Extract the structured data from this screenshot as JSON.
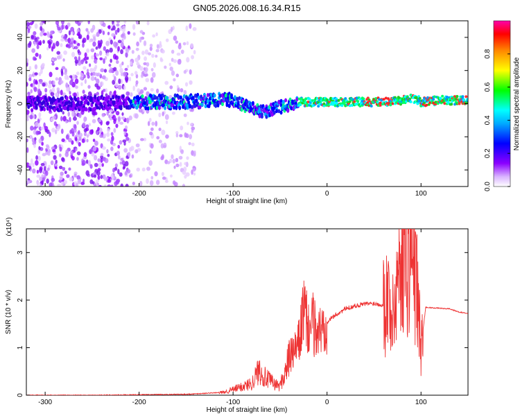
{
  "chart_data": [
    {
      "type": "heatmap",
      "title": "GN05.2026.008.16.34.R15",
      "xlabel": "Height of straight line (km)",
      "ylabel": "Frequency (Hz)",
      "xlim": [
        -320,
        150
      ],
      "ylim": [
        -50,
        50
      ],
      "xticks": [
        -300,
        -200,
        -100,
        0,
        100
      ],
      "yticks": [
        40,
        20,
        0,
        -20,
        -40
      ],
      "colorbar": {
        "label": "Normalized spectral amplitude",
        "ticks": [
          "0.0",
          "0.2",
          "0.4",
          "0.6",
          "0.8"
        ],
        "range": [
          0,
          1
        ],
        "colormap": [
          "#ffffff",
          "#8b00ff",
          "#0000ff",
          "#00ffff",
          "#00ff00",
          "#ffff00",
          "#ff8800",
          "#ff0000",
          "#ff00aa"
        ]
      },
      "ridge": {
        "x": [
          -320,
          -250,
          -210,
          -180,
          -150,
          -120,
          -100,
          -80,
          -65,
          -50,
          -40,
          -30,
          -20,
          -10,
          0,
          20,
          40,
          60,
          80,
          90,
          95,
          100,
          120,
          150
        ],
        "y": [
          0,
          0,
          1,
          1,
          1,
          2,
          2,
          -3,
          -5,
          -2,
          -1,
          1,
          1,
          1,
          1,
          1,
          1,
          1,
          2,
          3,
          3,
          1,
          2,
          2
        ]
      },
      "noise_region_x": [
        -320,
        -140
      ],
      "strong_band_x": [
        -30,
        150
      ]
    },
    {
      "type": "line",
      "xlabel": "Height of straight line (km)",
      "ylabel": "SNR (10 * v/v)",
      "y_multiplier": "(x10⁴)",
      "xlim": [
        -320,
        150
      ],
      "ylim": [
        0,
        3.5
      ],
      "xticks": [
        -300,
        -200,
        -100,
        0,
        100
      ],
      "yticks": [
        0,
        1,
        2,
        3
      ],
      "line_color": "#ee3333",
      "series": [
        {
          "name": "SNR",
          "x": [
            -320,
            -250,
            -200,
            -150,
            -130,
            -110,
            -100,
            -90,
            -80,
            -72,
            -65,
            -60,
            -55,
            -50,
            -45,
            -40,
            -35,
            -30,
            -25,
            -20,
            -15,
            -10,
            -5,
            0,
            10,
            20,
            30,
            40,
            50,
            60,
            65,
            70,
            75,
            80,
            85,
            90,
            95,
            100,
            105,
            110,
            120,
            125,
            130,
            140,
            150
          ],
          "y": [
            0.0,
            0.0,
            0.01,
            0.02,
            0.04,
            0.06,
            0.12,
            0.18,
            0.25,
            0.55,
            0.35,
            0.3,
            0.22,
            0.2,
            0.45,
            0.8,
            0.9,
            1.1,
            1.8,
            1.4,
            1.5,
            1.3,
            1.4,
            1.55,
            1.7,
            1.82,
            1.88,
            1.92,
            1.93,
            1.9,
            2.1,
            1.6,
            2.5,
            3.2,
            2.8,
            3.0,
            2.4,
            1.0,
            1.85,
            1.84,
            1.83,
            1.82,
            1.82,
            1.75,
            1.72
          ]
        }
      ]
    }
  ]
}
